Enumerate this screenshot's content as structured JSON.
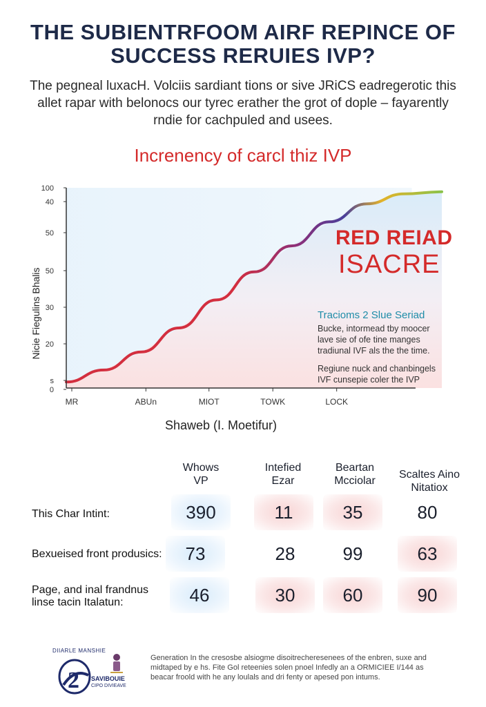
{
  "header": {
    "title_line1": "THE SUBIENTRFOOM AIRF REPINCE OF",
    "title_line2": "SUCCESS RERUIES IVP?",
    "subtitle_line1": "The pegneal luxacH. Volciis sardiant tions or sive JRiCS eadregerotic this",
    "subtitle_line2": "allet rapar with belonocs our tyrec erather the grot of dople – fayarently",
    "subtitle_line3": "rndie for cachpuled and usees."
  },
  "chart_data": {
    "type": "line",
    "title": "Increnency of carcl thiz IVP",
    "xlabel": "Shaweb (I. Moetifur)",
    "ylabel": "Nicie Fiegulins Bhalis",
    "categories": [
      "MR",
      "ABUn",
      "MIOT",
      "TOWK",
      "LOCK"
    ],
    "y_tick_labels": [
      "100",
      "40",
      "50",
      "50",
      "30",
      "20",
      "s",
      "0"
    ],
    "ylim": [
      0,
      100
    ],
    "series": [
      {
        "name": "Tracioms 2 Slue Seriad",
        "x": [
          0,
          0.5,
          1,
          1.5,
          2,
          2.5,
          3,
          3.5,
          4,
          4.5,
          5
        ],
        "values": [
          3,
          9,
          18,
          30,
          44,
          58,
          71,
          83,
          92,
          97,
          98
        ]
      }
    ],
    "colors": {
      "line_start": "#d32f3f",
      "line_mid": "#8a2f7a",
      "line_late": "#4a3f9a",
      "line_tail_yellow": "#e3b32a",
      "line_tail_green": "#8ac24a",
      "fill_blue": "#d9ecf9",
      "fill_red": "#fbe1e1"
    },
    "legend_placement": "right"
  },
  "brand": {
    "line1": "RED REIAD",
    "line2": "ISACRE"
  },
  "legend": {
    "title": "Tracioms 2 Slue Seriad",
    "para1_line1": "Bucke, intormead tby moocer",
    "para1_line2": "lave sie of ofe tine manges",
    "para1_line3": "tradiunal IVF als the the time.",
    "para2_line1": "Regiune nuck and chanbingels",
    "para2_line2": "IVF cunsepie coler the IVP"
  },
  "table": {
    "columns": [
      {
        "line1": "Whows",
        "line2": "VP"
      },
      {
        "line1": "Intefied",
        "line2": "Ezar"
      },
      {
        "line1": "Beartan",
        "line2": "Mcciolar"
      },
      {
        "line1": "Scaltes Aino",
        "line2": "Nitatiox"
      }
    ],
    "rows": [
      {
        "label_line1": "This Char Intint:",
        "label_line2": "",
        "values": [
          "390",
          "11",
          "35",
          "80"
        ],
        "tints": [
          "blue",
          "red",
          "red",
          "none"
        ]
      },
      {
        "label_line1": "Bexueised front produsics:",
        "label_line2": "",
        "values": [
          "73",
          "28",
          "99",
          "63"
        ],
        "tints": [
          "blue",
          "none",
          "none",
          "red"
        ]
      },
      {
        "label_line1": "Page, and inal frandnus",
        "label_line2": "linse tacin Italatun:",
        "values": [
          "46",
          "30",
          "60",
          "90"
        ],
        "tints": [
          "blue",
          "red",
          "red",
          "red"
        ]
      }
    ]
  },
  "logo": {
    "top_text": "DIIARLE MANSHIE",
    "mid_text": "SAVIBOUIE",
    "bot_text": "CIPO DIVIEAVE",
    "glyph": "2",
    "color": "#1e2a6a"
  },
  "footer": {
    "line1": "Generation In the cresosbe alsiogme disoitrecheresenees of the enbren, suxe and",
    "line2": "midtaped by e hs. Fite Gol reteenies solen pnoel Infedly an a ORMICIEE I/144 as",
    "line3": "beacar froold with he any loulals and dri fenty or apesed pon intums."
  }
}
